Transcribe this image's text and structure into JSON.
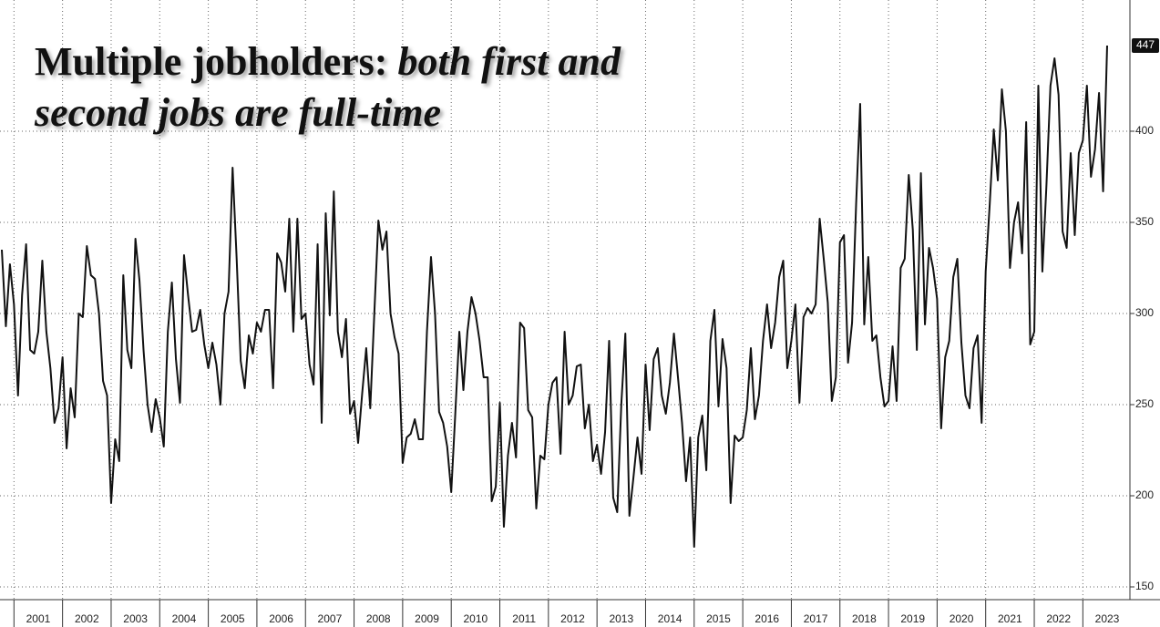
{
  "chart_data": {
    "type": "line",
    "title": {
      "plain": "Multiple jobholders:",
      "italic": "both first and second jobs are full-time"
    },
    "categories": [
      null,
      null,
      null,
      null,
      null,
      null,
      null,
      null,
      null,
      "2001",
      null,
      null,
      null,
      null,
      null,
      null,
      null,
      null,
      null,
      null,
      null,
      "2002",
      null,
      null,
      null,
      null,
      null,
      null,
      null,
      null,
      null,
      null,
      null,
      "2003",
      null,
      null,
      null,
      null,
      null,
      null,
      null,
      null,
      null,
      null,
      null,
      "2004",
      null,
      null,
      null,
      null,
      null,
      null,
      null,
      null,
      null,
      null,
      null,
      "2005",
      null,
      null,
      null,
      null,
      null,
      null,
      null,
      null,
      null,
      null,
      null,
      "2006",
      null,
      null,
      null,
      null,
      null,
      null,
      null,
      null,
      null,
      null,
      null,
      "2007",
      null,
      null,
      null,
      null,
      null,
      null,
      null,
      null,
      null,
      null,
      null,
      "2008",
      null,
      null,
      null,
      null,
      null,
      null,
      null,
      null,
      null,
      null,
      null,
      "2009",
      null,
      null,
      null,
      null,
      null,
      null,
      null,
      null,
      null,
      null,
      null,
      "2010",
      null,
      null,
      null,
      null,
      null,
      null,
      null,
      null,
      null,
      null,
      null,
      "2011",
      null,
      null,
      null,
      null,
      null,
      null,
      null,
      null,
      null,
      null,
      null,
      "2012",
      null,
      null,
      null,
      null,
      null,
      null,
      null,
      null,
      null,
      null,
      null,
      "2013",
      null,
      null,
      null,
      null,
      null,
      null,
      null,
      null,
      null,
      null,
      null,
      "2014",
      null,
      null,
      null,
      null,
      null,
      null,
      null,
      null,
      null,
      null,
      null,
      "2015",
      null,
      null,
      null,
      null,
      null,
      null,
      null,
      null,
      null,
      null,
      null,
      "2016",
      null,
      null,
      null,
      null,
      null,
      null,
      null,
      null,
      null,
      null,
      null,
      "2017",
      null,
      null,
      null,
      null,
      null,
      null,
      null,
      null,
      null,
      null,
      null,
      "2018",
      null,
      null,
      null,
      null,
      null,
      null,
      null,
      null,
      null,
      null,
      null,
      "2019",
      null,
      null,
      null,
      null,
      null,
      null,
      null,
      null,
      null,
      null,
      null,
      "2020",
      null,
      null,
      null,
      null,
      null,
      null,
      null,
      null,
      null,
      null,
      null,
      "2021",
      null,
      null,
      null,
      null,
      null,
      null,
      null,
      null,
      null,
      null,
      null,
      "2022",
      null,
      null,
      null,
      null,
      null,
      null,
      null,
      null,
      null,
      null,
      null,
      "2023"
    ],
    "values": [
      335,
      293,
      327,
      305,
      255,
      310,
      338,
      280,
      278,
      290,
      329,
      290,
      270,
      240,
      248,
      276,
      226,
      259,
      243,
      300,
      298,
      337,
      321,
      319,
      300,
      263,
      255,
      196,
      231,
      219,
      321,
      280,
      270,
      341,
      318,
      280,
      250,
      235,
      253,
      243,
      227,
      290,
      317,
      275,
      251,
      332,
      310,
      290,
      291,
      302,
      283,
      270,
      284,
      272,
      250,
      300,
      312,
      380,
      330,
      274,
      259,
      288,
      278,
      295,
      290,
      302,
      302,
      259,
      333,
      328,
      312,
      352,
      290,
      352,
      297,
      300,
      272,
      261,
      338,
      240,
      355,
      299,
      367,
      290,
      276,
      297,
      245,
      252,
      229,
      256,
      281,
      248,
      300,
      351,
      335,
      345,
      300,
      287,
      278,
      218,
      232,
      234,
      242,
      231,
      231,
      290,
      331,
      300,
      246,
      240,
      227,
      202,
      245,
      290,
      258,
      290,
      309,
      300,
      285,
      265,
      265,
      197,
      205,
      251,
      183,
      222,
      240,
      221,
      295,
      292,
      247,
      243,
      193,
      222,
      220,
      250,
      262,
      265,
      223,
      290,
      250,
      255,
      271,
      272,
      237,
      250,
      219,
      228,
      212,
      235,
      285,
      199,
      191,
      250,
      289,
      189,
      210,
      232,
      212,
      272,
      236,
      275,
      281,
      255,
      245,
      262,
      289,
      265,
      240,
      208,
      232,
      172,
      232,
      244,
      214,
      285,
      302,
      249,
      286,
      270,
      196,
      233,
      230,
      232,
      247,
      281,
      242,
      255,
      285,
      305,
      281,
      295,
      320,
      329,
      270,
      285,
      305,
      251,
      298,
      303,
      300,
      305,
      352,
      330,
      306,
      252,
      265,
      339,
      343,
      273,
      295,
      360,
      415,
      294,
      331,
      285,
      288,
      265,
      249,
      252,
      282,
      252,
      325,
      330,
      376,
      346,
      280,
      377,
      294,
      336,
      325,
      308,
      237,
      276,
      285,
      320,
      330,
      284,
      255,
      248,
      281,
      288,
      240,
      323,
      360,
      401,
      373,
      423,
      400,
      325,
      350,
      361,
      333,
      405,
      283,
      290,
      425,
      323,
      370,
      425,
      440,
      420,
      345,
      336,
      388,
      343,
      388,
      395,
      425,
      375,
      390,
      421,
      367,
      447
    ],
    "color": "#111111",
    "ylim": [
      143,
      472
    ],
    "yticks": [
      150,
      200,
      250,
      300,
      350,
      400
    ],
    "grid": true
  }
}
